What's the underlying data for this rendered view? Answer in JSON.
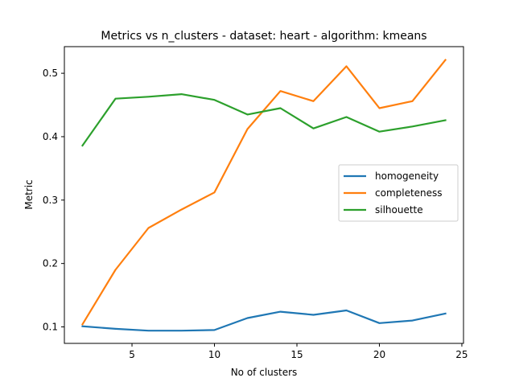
{
  "chart_data": {
    "type": "line",
    "title": "Metrics vs n_clusters - dataset: heart - algorithm: kmeans",
    "xlabel": "No of clusters",
    "ylabel": "Metric",
    "x": [
      2,
      4,
      6,
      8,
      10,
      12,
      14,
      16,
      18,
      20,
      22,
      24
    ],
    "xlim": [
      0.9,
      25.1
    ],
    "ylim": [
      0.074,
      0.542
    ],
    "xticks": [
      5,
      10,
      15,
      20,
      25
    ],
    "yticks": [
      0.1,
      0.2,
      0.3,
      0.4,
      0.5
    ],
    "xtick_labels": [
      "5",
      "10",
      "15",
      "20",
      "25"
    ],
    "ytick_labels": [
      "0.1",
      "0.2",
      "0.3",
      "0.4",
      "0.5"
    ],
    "grid": false,
    "legend_position": "center-right",
    "series": [
      {
        "name": "homogeneity",
        "color": "#1f77b4",
        "values": [
          0.101,
          0.097,
          0.094,
          0.094,
          0.095,
          0.114,
          0.124,
          0.119,
          0.126,
          0.106,
          0.11,
          0.121
        ]
      },
      {
        "name": "completeness",
        "color": "#ff7f0e",
        "values": [
          0.104,
          0.19,
          0.256,
          0.285,
          0.312,
          0.412,
          0.472,
          0.456,
          0.511,
          0.445,
          0.456,
          0.521
        ]
      },
      {
        "name": "silhouette",
        "color": "#2ca02c",
        "values": [
          0.386,
          0.46,
          0.463,
          0.467,
          0.458,
          0.435,
          0.445,
          0.413,
          0.431,
          0.408,
          0.416,
          0.426
        ]
      }
    ]
  }
}
